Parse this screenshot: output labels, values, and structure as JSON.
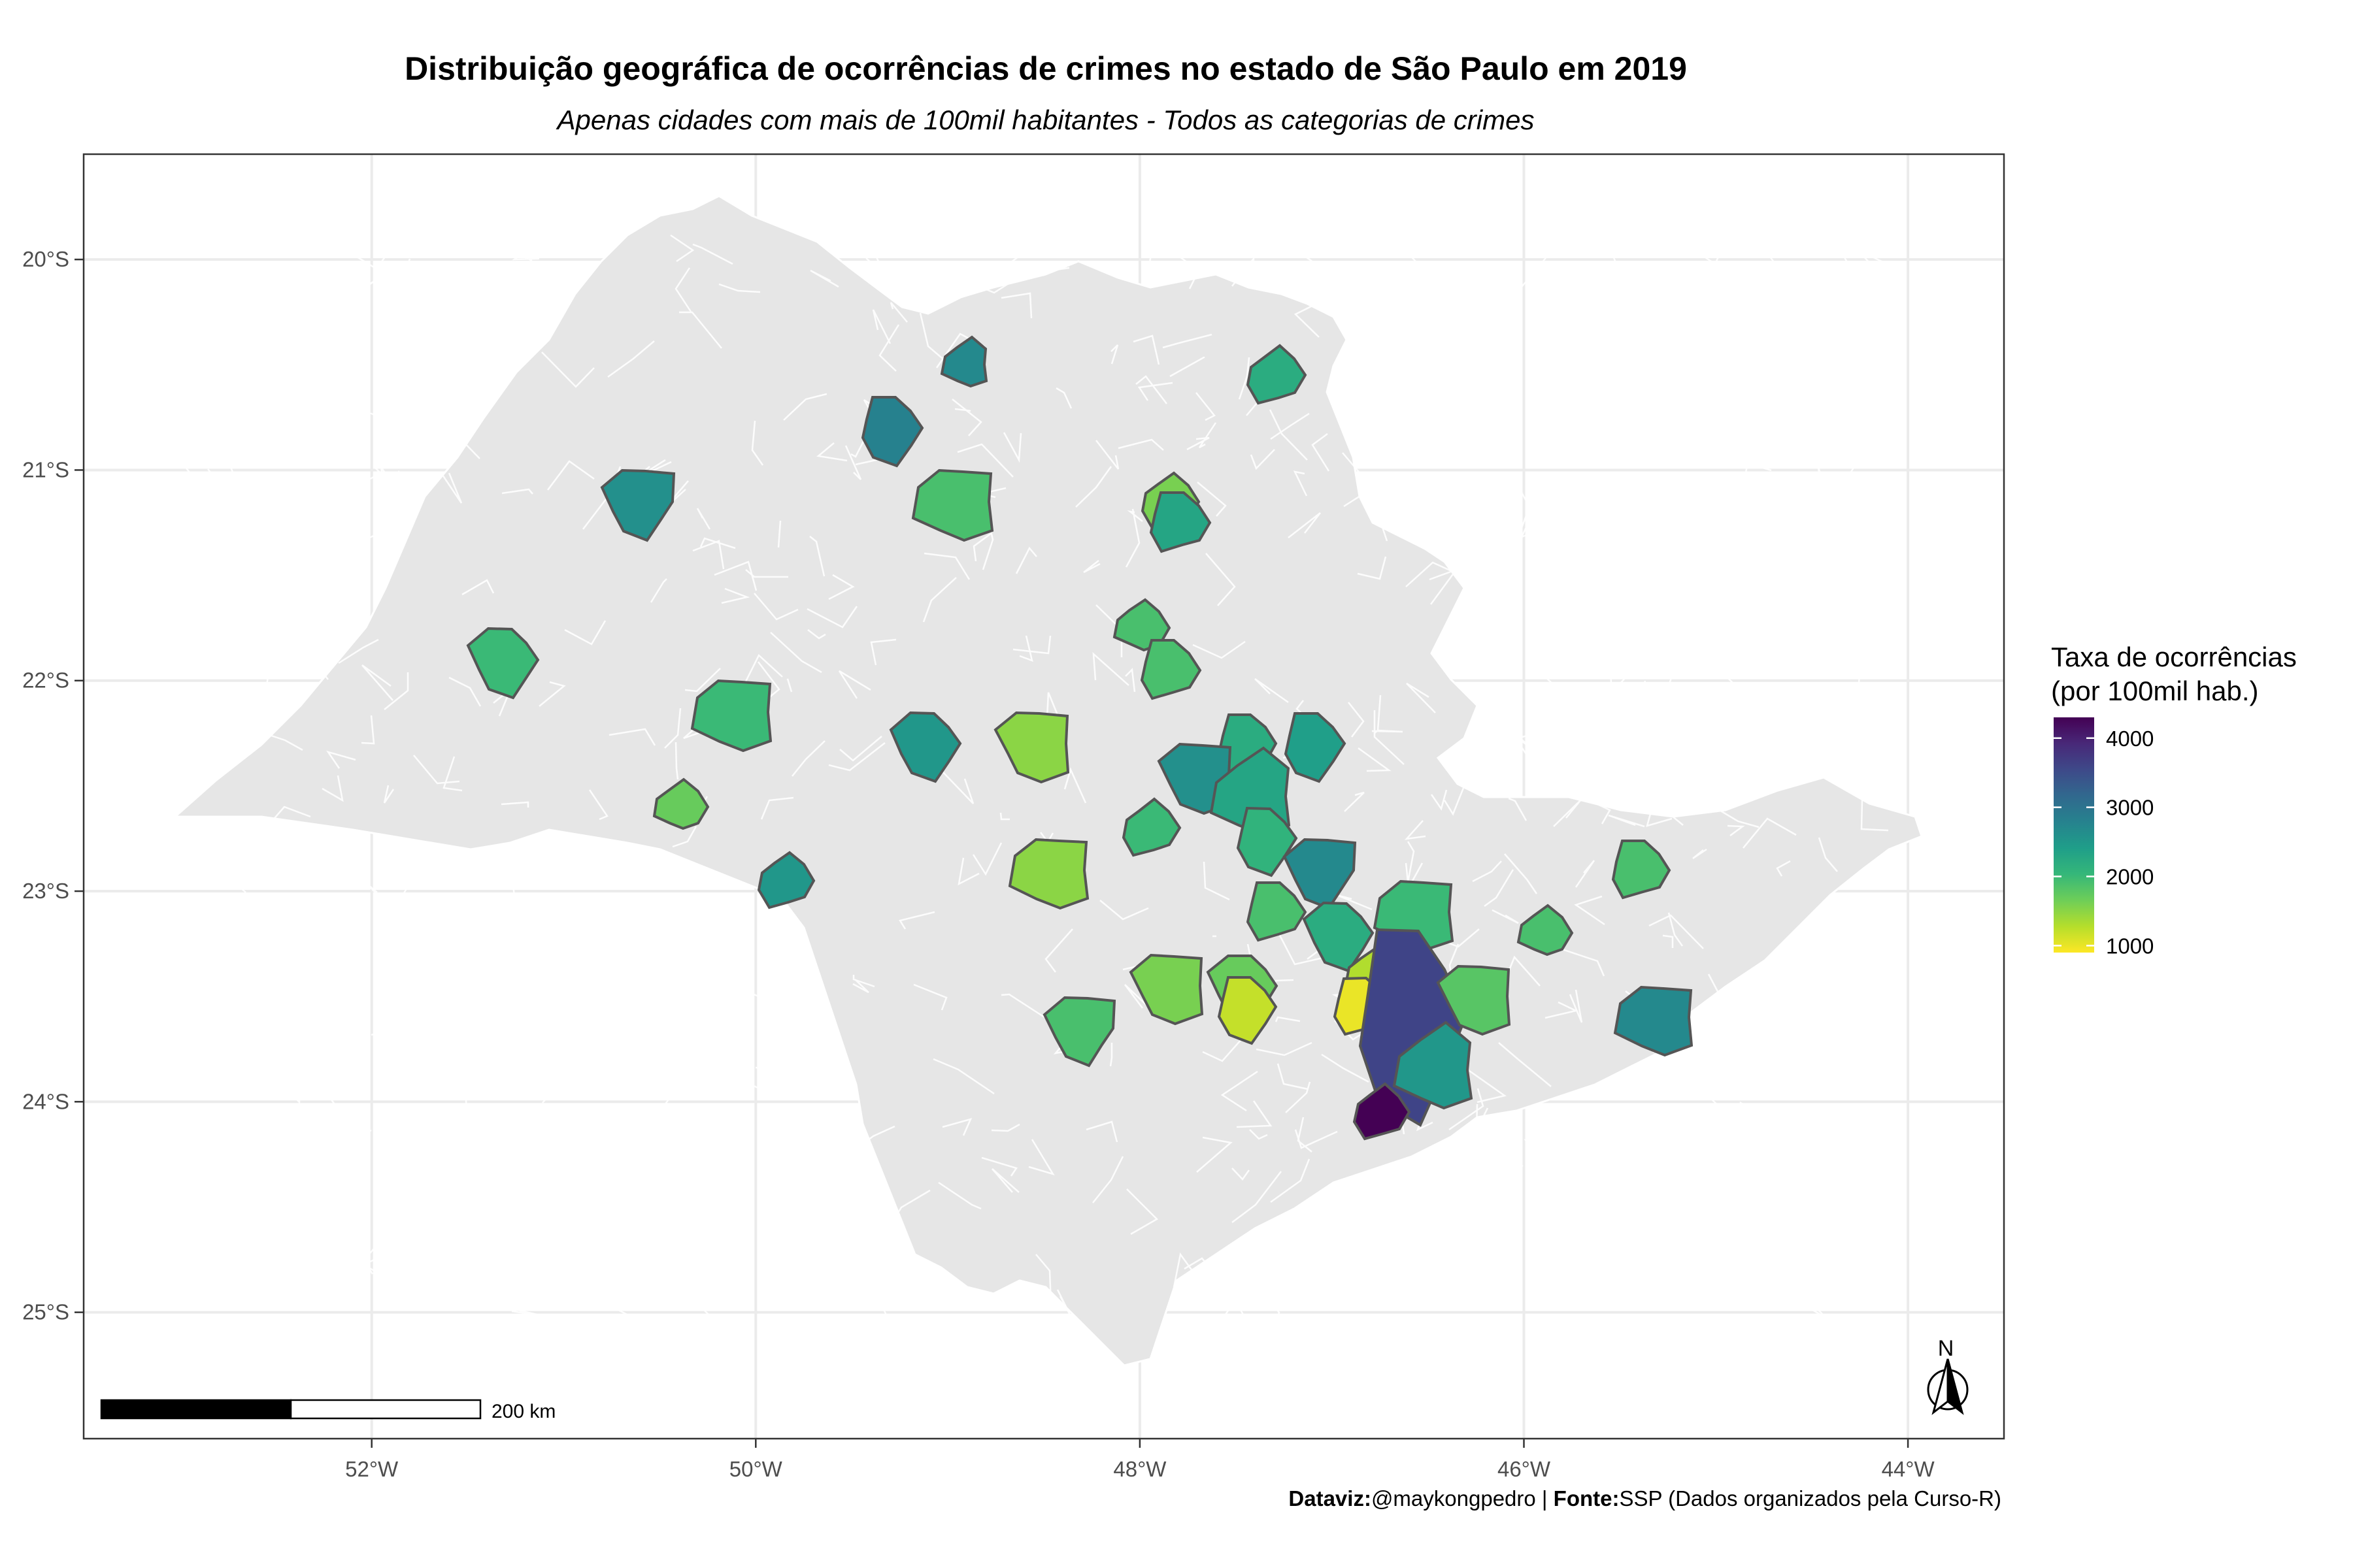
{
  "title": "Distribuição geográfica de ocorrências de crimes no estado de São Paulo em 2019",
  "subtitle": "Apenas cidades com mais de 100mil habitantes - Todos as categorias de crimes",
  "axes": {
    "x_ticks": [
      "52°W",
      "50°W",
      "48°W",
      "46°W",
      "44°W"
    ],
    "y_ticks": [
      "20°S",
      "21°S",
      "22°S",
      "23°S",
      "24°S",
      "25°S"
    ]
  },
  "legend": {
    "title_line1": "Taxa de ocorrências",
    "title_line2": "(por 100mil hab.)",
    "ticks": [
      "4000",
      "3000",
      "2000",
      "1000"
    ],
    "palette": "viridis (reversed)",
    "colors": [
      "#fde725",
      "#b5de2b",
      "#6ece58",
      "#35b779",
      "#1f9e89",
      "#26828e",
      "#31688e",
      "#3e4989",
      "#482878",
      "#440154"
    ]
  },
  "scale_bar": {
    "label": "200 km"
  },
  "north_arrow": {
    "label": "N"
  },
  "caption": {
    "dataviz_label": "Dataviz:",
    "dataviz_value": "@maykongpedro",
    "separator": " | ",
    "source_label": "Fonte:",
    "source_value": "SSP (Dados organizados pela Curso-R)"
  },
  "colors": {
    "state_fill": "#e6e6e6",
    "grid": "#ebebeb",
    "border": "#333333",
    "axis_text": "#4d4d4d"
  },
  "chart_data": {
    "type": "choropleth",
    "region": "Estado de São Paulo",
    "value_range": [
      900,
      4300
    ],
    "xlim": [
      -53.5,
      -43.5
    ],
    "ylim": [
      -25.6,
      -19.5
    ],
    "cities": [
      {
        "lon": -48.9,
        "lat": -20.5,
        "value": 2700
      },
      {
        "lon": -47.3,
        "lat": -20.55,
        "value": 2200
      },
      {
        "lon": -49.3,
        "lat": -20.8,
        "value": 2800
      },
      {
        "lon": -50.6,
        "lat": -21.15,
        "value": 2600
      },
      {
        "lon": -48.95,
        "lat": -21.15,
        "value": 1900
      },
      {
        "lon": -47.85,
        "lat": -21.15,
        "value": 1600
      },
      {
        "lon": -47.8,
        "lat": -21.25,
        "value": 2300
      },
      {
        "lon": -51.3,
        "lat": -21.9,
        "value": 2000
      },
      {
        "lon": -50.1,
        "lat": -22.15,
        "value": 2000
      },
      {
        "lon": -48.0,
        "lat": -21.75,
        "value": 1900
      },
      {
        "lon": -47.85,
        "lat": -21.95,
        "value": 1900
      },
      {
        "lon": -49.1,
        "lat": -22.3,
        "value": 2500
      },
      {
        "lon": -48.55,
        "lat": -22.3,
        "value": 1500
      },
      {
        "lon": -50.4,
        "lat": -22.6,
        "value": 1700
      },
      {
        "lon": -47.45,
        "lat": -22.3,
        "value": 2200
      },
      {
        "lon": -47.1,
        "lat": -22.3,
        "value": 2400
      },
      {
        "lon": -47.7,
        "lat": -22.45,
        "value": 2600
      },
      {
        "lon": -47.4,
        "lat": -22.55,
        "value": 2300
      },
      {
        "lon": -47.95,
        "lat": -22.7,
        "value": 2000
      },
      {
        "lon": -47.35,
        "lat": -22.75,
        "value": 2100
      },
      {
        "lon": -47.05,
        "lat": -22.9,
        "value": 2700
      },
      {
        "lon": -48.45,
        "lat": -22.9,
        "value": 1500
      },
      {
        "lon": -49.85,
        "lat": -22.95,
        "value": 2500
      },
      {
        "lon": -47.3,
        "lat": -23.1,
        "value": 1900
      },
      {
        "lon": -46.95,
        "lat": -23.2,
        "value": 2200
      },
      {
        "lon": -46.55,
        "lat": -23.1,
        "value": 2000
      },
      {
        "lon": -45.9,
        "lat": -23.2,
        "value": 1900
      },
      {
        "lon": -45.4,
        "lat": -22.9,
        "value": 1900
      },
      {
        "lon": -47.45,
        "lat": -23.45,
        "value": 1700
      },
      {
        "lon": -47.85,
        "lat": -23.45,
        "value": 1600
      },
      {
        "lon": -46.8,
        "lat": -23.4,
        "value": 1300
      },
      {
        "lon": -46.85,
        "lat": -23.55,
        "value": 1000
      },
      {
        "lon": -46.6,
        "lat": -23.6,
        "value": 3600
      },
      {
        "lon": -46.25,
        "lat": -23.5,
        "value": 1800
      },
      {
        "lon": -46.45,
        "lat": -23.85,
        "value": 2500
      },
      {
        "lon": -46.75,
        "lat": -24.05,
        "value": 4300
      },
      {
        "lon": -47.45,
        "lat": -23.55,
        "value": 1200
      },
      {
        "lon": -48.3,
        "lat": -23.65,
        "value": 1900
      },
      {
        "lon": -45.3,
        "lat": -23.6,
        "value": 2700
      }
    ]
  }
}
